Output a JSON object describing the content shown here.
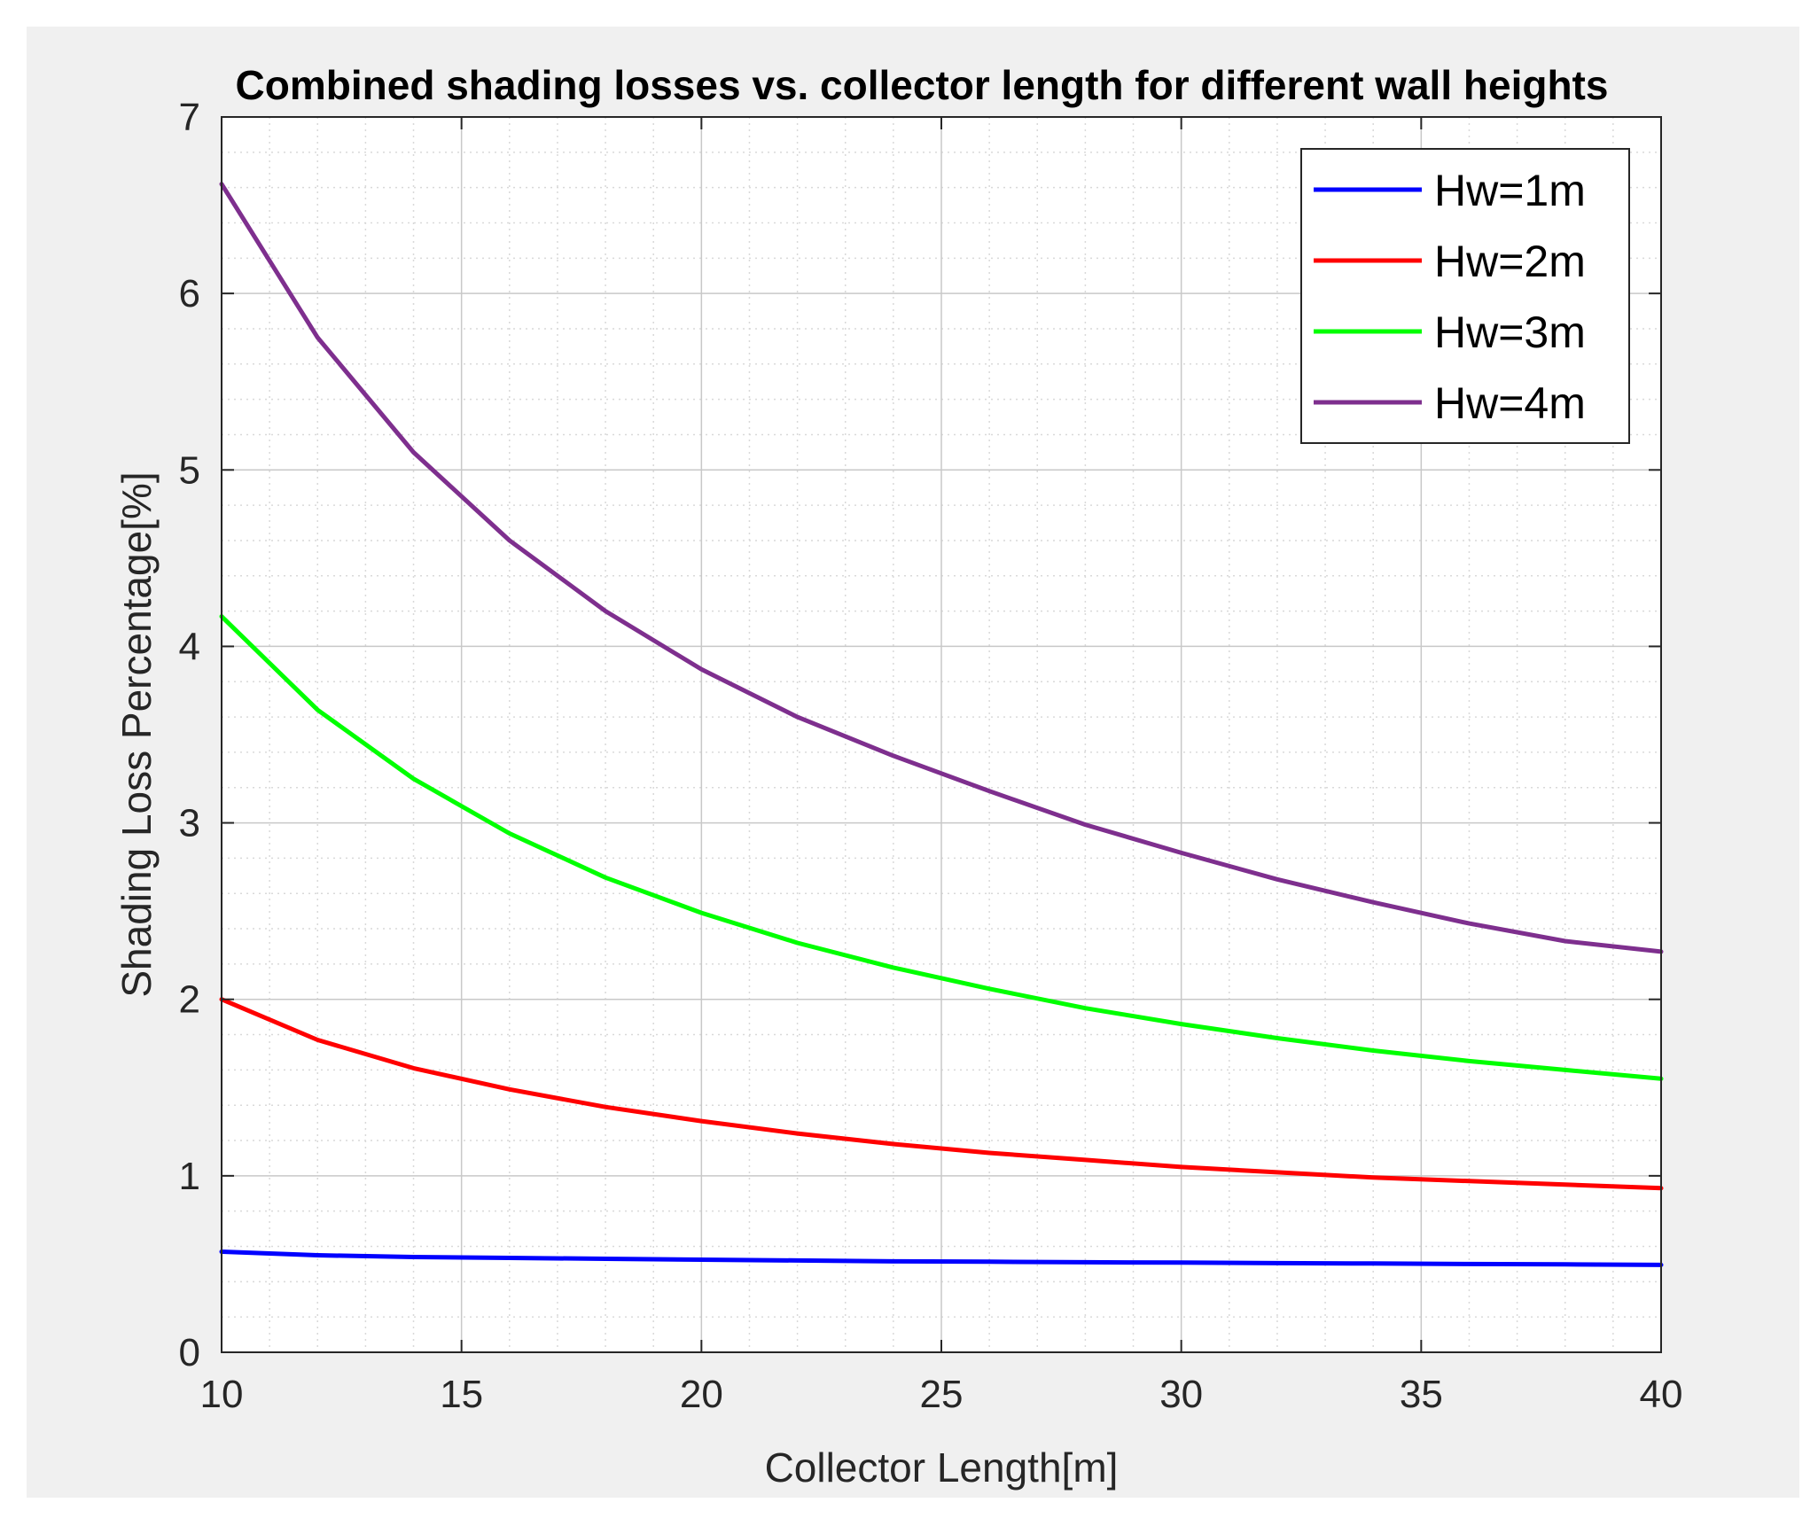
{
  "chart_data": {
    "type": "line",
    "title": "Combined shading losses vs. collector length for different wall heights",
    "xlabel": "Collector Length[m]",
    "ylabel": "Shading Loss Percentage[%]",
    "xlim": [
      10,
      40
    ],
    "ylim": [
      0,
      7
    ],
    "xticks": [
      10,
      15,
      20,
      25,
      30,
      35,
      40
    ],
    "yticks": [
      0,
      1,
      2,
      3,
      4,
      5,
      6,
      7
    ],
    "grid": true,
    "minor_grid": true,
    "legend_position": "top-right",
    "x": [
      10,
      12,
      14,
      16,
      18,
      20,
      22,
      24,
      26,
      28,
      30,
      32,
      34,
      36,
      38,
      40
    ],
    "series": [
      {
        "name": "Hw=1m",
        "color": "#0000ff",
        "values": [
          0.57,
          0.55,
          0.54,
          0.535,
          0.53,
          0.525,
          0.52,
          0.515,
          0.513,
          0.51,
          0.508,
          0.505,
          0.503,
          0.5,
          0.498,
          0.495
        ]
      },
      {
        "name": "Hw=2m",
        "color": "#ff0000",
        "values": [
          2.0,
          1.77,
          1.61,
          1.49,
          1.39,
          1.31,
          1.24,
          1.18,
          1.13,
          1.09,
          1.05,
          1.02,
          0.99,
          0.97,
          0.95,
          0.93
        ]
      },
      {
        "name": "Hw=3m",
        "color": "#00ff00",
        "values": [
          4.17,
          3.64,
          3.25,
          2.94,
          2.69,
          2.49,
          2.32,
          2.18,
          2.06,
          1.95,
          1.86,
          1.78,
          1.71,
          1.65,
          1.6,
          1.55
        ]
      },
      {
        "name": "Hw=4m",
        "color": "#7e2f8e",
        "values": [
          6.62,
          5.75,
          5.1,
          4.6,
          4.2,
          3.87,
          3.6,
          3.38,
          3.18,
          2.99,
          2.83,
          2.68,
          2.55,
          2.43,
          2.33,
          2.27
        ]
      }
    ]
  }
}
